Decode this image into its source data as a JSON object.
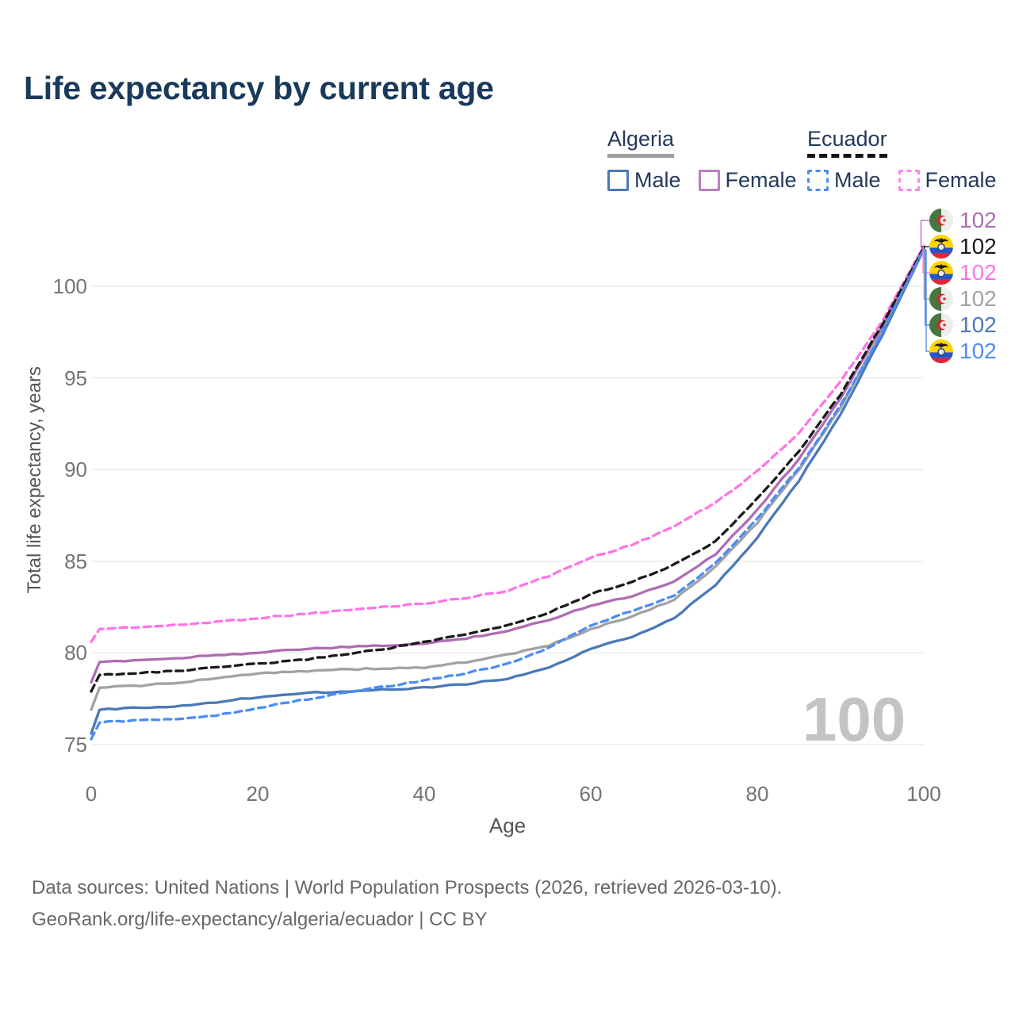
{
  "title": "Life expectancy by current age",
  "watermark": "100",
  "axes": {
    "x_title": "Age",
    "y_title": "Total life expectancy, years"
  },
  "legend": {
    "groups": [
      {
        "name": "Algeria",
        "line_style": "solid",
        "underline_color": "#9e9e9e",
        "items": [
          {
            "label": "Male",
            "color": "#4b79b7",
            "box_style": "solid"
          },
          {
            "label": "Female",
            "color": "#b97ec0",
            "box_style": "solid"
          }
        ]
      },
      {
        "name": "Ecuador",
        "line_style": "dashed",
        "underline_color": "#141414",
        "items": [
          {
            "label": "Male",
            "color": "#4d8cf5",
            "box_style": "dashed"
          },
          {
            "label": "Female",
            "color": "#ff85e8",
            "box_style": "dashed"
          }
        ]
      }
    ]
  },
  "footer": {
    "line1": "Data sources: United Nations | World Population Prospects (2026, retrieved 2026-03-10).",
    "line2": "GeoRank.org/life-expectancy/algeria/ecuador | CC BY"
  },
  "chart_data": {
    "type": "line",
    "title": "Life expectancy by current age",
    "xlabel": "Age",
    "ylabel": "Total life expectancy, years",
    "xlim": [
      0,
      100
    ],
    "ylim": [
      75,
      102.5
    ],
    "xticks": [
      0,
      20,
      40,
      60,
      80,
      100
    ],
    "yticks": [
      75,
      80,
      85,
      90,
      95,
      100
    ],
    "grid": "horizontal",
    "grid_color": "#e9e9e9",
    "x": [
      0,
      1,
      5,
      10,
      15,
      20,
      25,
      30,
      35,
      40,
      45,
      50,
      55,
      60,
      65,
      70,
      75,
      80,
      85,
      90,
      95,
      100
    ],
    "series": [
      {
        "name": "Ecuador Female",
        "country": "Ecuador",
        "sex": "Female",
        "color": "#ff74e6",
        "dash": "dashed",
        "values": [
          80.6,
          81.3,
          81.4,
          81.5,
          81.7,
          81.9,
          82.1,
          82.3,
          82.5,
          82.7,
          83.0,
          83.4,
          84.2,
          85.2,
          85.9,
          86.9,
          88.2,
          89.9,
          92.0,
          94.8,
          98.1,
          102.2
        ],
        "end_label": "102"
      },
      {
        "name": "Algeria Female",
        "country": "Algeria",
        "sex": "Female",
        "color": "#ae6cb2",
        "dash": "solid",
        "values": [
          78.4,
          79.5,
          79.6,
          79.7,
          79.9,
          80.0,
          80.2,
          80.3,
          80.4,
          80.5,
          80.8,
          81.2,
          81.8,
          82.6,
          83.1,
          83.9,
          85.4,
          87.8,
          90.6,
          93.9,
          97.8,
          102.1
        ],
        "end_label": "102"
      },
      {
        "name": "Ecuador Both sexes",
        "country": "Ecuador",
        "sex": "Both",
        "color": "#1a1a1a",
        "dash": "dashed",
        "values": [
          77.9,
          78.8,
          78.9,
          79.0,
          79.2,
          79.4,
          79.6,
          79.9,
          80.2,
          80.6,
          81.0,
          81.5,
          82.2,
          83.2,
          83.9,
          84.8,
          86.1,
          88.4,
          91.0,
          94.1,
          97.9,
          102.1
        ],
        "end_label": "102"
      },
      {
        "name": "Algeria Both sexes",
        "country": "Algeria",
        "sex": "Both",
        "color": "#a2a2a2",
        "dash": "solid",
        "values": [
          76.9,
          78.1,
          78.2,
          78.35,
          78.6,
          78.9,
          79.0,
          79.1,
          79.15,
          79.2,
          79.5,
          79.9,
          80.4,
          81.3,
          82.0,
          82.9,
          84.7,
          87.1,
          90.0,
          93.4,
          97.5,
          102.0
        ],
        "end_label": "102"
      },
      {
        "name": "Algeria Male",
        "country": "Algeria",
        "sex": "Male",
        "color": "#4b79b7",
        "dash": "solid",
        "values": [
          75.6,
          76.9,
          77.0,
          77.1,
          77.3,
          77.6,
          77.8,
          77.9,
          78.0,
          78.1,
          78.3,
          78.6,
          79.2,
          80.2,
          80.9,
          81.9,
          83.7,
          86.3,
          89.4,
          93.0,
          97.3,
          102.0
        ],
        "end_label": "102"
      },
      {
        "name": "Ecuador Male",
        "country": "Ecuador",
        "sex": "Male",
        "color": "#4d8cf5",
        "dash": "dashed",
        "values": [
          75.3,
          76.2,
          76.3,
          76.4,
          76.6,
          77.0,
          77.4,
          77.8,
          78.15,
          78.5,
          78.9,
          79.4,
          80.3,
          81.5,
          82.3,
          83.1,
          84.9,
          87.3,
          90.1,
          93.5,
          97.5,
          102.0
        ],
        "end_label": "102"
      }
    ],
    "end_labels": [
      {
        "series": "Algeria Female",
        "flag": "algeria",
        "value": "102"
      },
      {
        "series": "Ecuador Both sexes",
        "flag": "ecuador",
        "value": "102"
      },
      {
        "series": "Ecuador Female",
        "flag": "ecuador",
        "value": "102"
      },
      {
        "series": "Algeria Both sexes",
        "flag": "algeria",
        "value": "102"
      },
      {
        "series": "Algeria Male",
        "flag": "algeria",
        "value": "102"
      },
      {
        "series": "Ecuador Male",
        "flag": "ecuador",
        "value": "102"
      }
    ]
  }
}
